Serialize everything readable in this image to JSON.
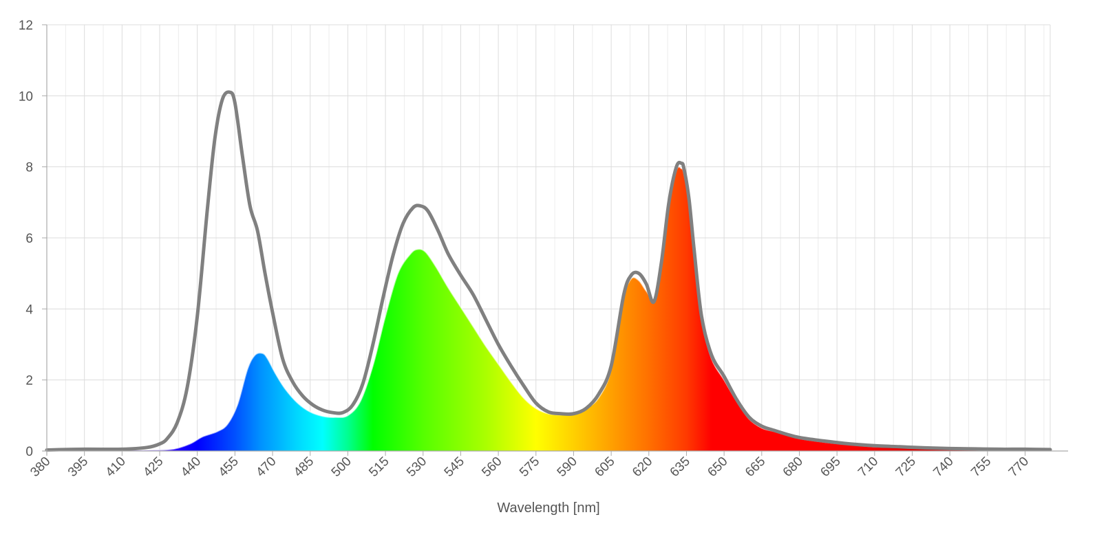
{
  "chart_data": {
    "type": "area",
    "title": "",
    "xlabel": "Wavelength [nm]",
    "ylabel": "",
    "xlim": [
      380,
      780
    ],
    "ylim": [
      0,
      12
    ],
    "grid": true,
    "legend": "none",
    "x_ticks": [
      "380",
      "395",
      "410",
      "425",
      "440",
      "455",
      "470",
      "485",
      "500",
      "515",
      "530",
      "545",
      "560",
      "575",
      "590",
      "605",
      "620",
      "635",
      "650",
      "665",
      "680",
      "695",
      "710",
      "725",
      "740",
      "755",
      "770"
    ],
    "y_ticks": [
      "0",
      "2",
      "4",
      "6",
      "8",
      "10",
      "12"
    ],
    "series": [
      {
        "style": "colored-fill",
        "color": "spectrum",
        "x": [
          380,
          395,
          410,
          420,
          430,
          437,
          442,
          448,
          452,
          456,
          460,
          463,
          466,
          468,
          471,
          475,
          480,
          485,
          490,
          495,
          500,
          505,
          510,
          515,
          520,
          525,
          528,
          531,
          535,
          540,
          545,
          550,
          555,
          560,
          565,
          570,
          575,
          580,
          585,
          590,
          595,
          600,
          605,
          610,
          613,
          616,
          619,
          622,
          625,
          628,
          631,
          633,
          634,
          636,
          638,
          641,
          645,
          650,
          655,
          660,
          665,
          670,
          675,
          680,
          690,
          700,
          710,
          720,
          730,
          740,
          750,
          760,
          770,
          780
        ],
        "y": [
          0.02,
          0.02,
          0.02,
          0.02,
          0.05,
          0.2,
          0.4,
          0.55,
          0.75,
          1.3,
          2.3,
          2.7,
          2.75,
          2.6,
          2.2,
          1.75,
          1.35,
          1.1,
          0.98,
          0.95,
          1.0,
          1.4,
          2.4,
          3.8,
          5.0,
          5.55,
          5.68,
          5.6,
          5.2,
          4.6,
          4.05,
          3.5,
          2.95,
          2.45,
          1.95,
          1.5,
          1.2,
          1.05,
          1.02,
          1.05,
          1.2,
          1.5,
          2.3,
          4.3,
          4.85,
          4.8,
          4.5,
          4.3,
          5.2,
          6.9,
          7.9,
          7.95,
          7.8,
          7.0,
          5.6,
          3.7,
          2.6,
          2.0,
          1.4,
          0.9,
          0.65,
          0.55,
          0.45,
          0.35,
          0.25,
          0.18,
          0.12,
          0.1,
          0.07,
          0.06,
          0.05,
          0.04,
          0.04,
          0.03
        ]
      },
      {
        "style": "gray-line",
        "color": "#808080",
        "x": [
          380,
          395,
          410,
          420,
          425,
          428,
          432,
          436,
          440,
          444,
          447,
          450,
          453,
          455,
          458,
          461,
          464,
          467,
          470,
          474,
          478,
          482,
          486,
          490,
          494,
          498,
          502,
          506,
          510,
          514,
          518,
          522,
          526,
          529,
          532,
          536,
          540,
          545,
          550,
          555,
          560,
          565,
          570,
          575,
          580,
          585,
          590,
          595,
          600,
          605,
          610,
          613,
          616,
          619,
          622,
          625,
          628,
          631,
          633,
          634,
          636,
          638,
          641,
          645,
          650,
          655,
          660,
          665,
          670,
          675,
          680,
          690,
          700,
          710,
          720,
          730,
          740,
          750,
          760,
          770,
          780
        ],
        "y": [
          0.03,
          0.05,
          0.05,
          0.1,
          0.2,
          0.35,
          0.8,
          1.8,
          3.8,
          6.8,
          8.8,
          9.9,
          10.1,
          9.8,
          8.3,
          6.9,
          6.2,
          5.0,
          3.9,
          2.6,
          1.95,
          1.55,
          1.3,
          1.15,
          1.08,
          1.08,
          1.3,
          1.9,
          3.0,
          4.3,
          5.5,
          6.4,
          6.85,
          6.9,
          6.75,
          6.2,
          5.55,
          4.95,
          4.4,
          3.7,
          3.0,
          2.4,
          1.85,
          1.35,
          1.1,
          1.05,
          1.05,
          1.2,
          1.6,
          2.4,
          4.4,
          4.95,
          5.0,
          4.7,
          4.2,
          5.3,
          7.0,
          8.0,
          8.1,
          7.95,
          7.1,
          5.7,
          3.8,
          2.7,
          2.1,
          1.45,
          0.95,
          0.7,
          0.58,
          0.47,
          0.38,
          0.28,
          0.2,
          0.15,
          0.12,
          0.09,
          0.07,
          0.06,
          0.05,
          0.05,
          0.04
        ]
      }
    ]
  }
}
